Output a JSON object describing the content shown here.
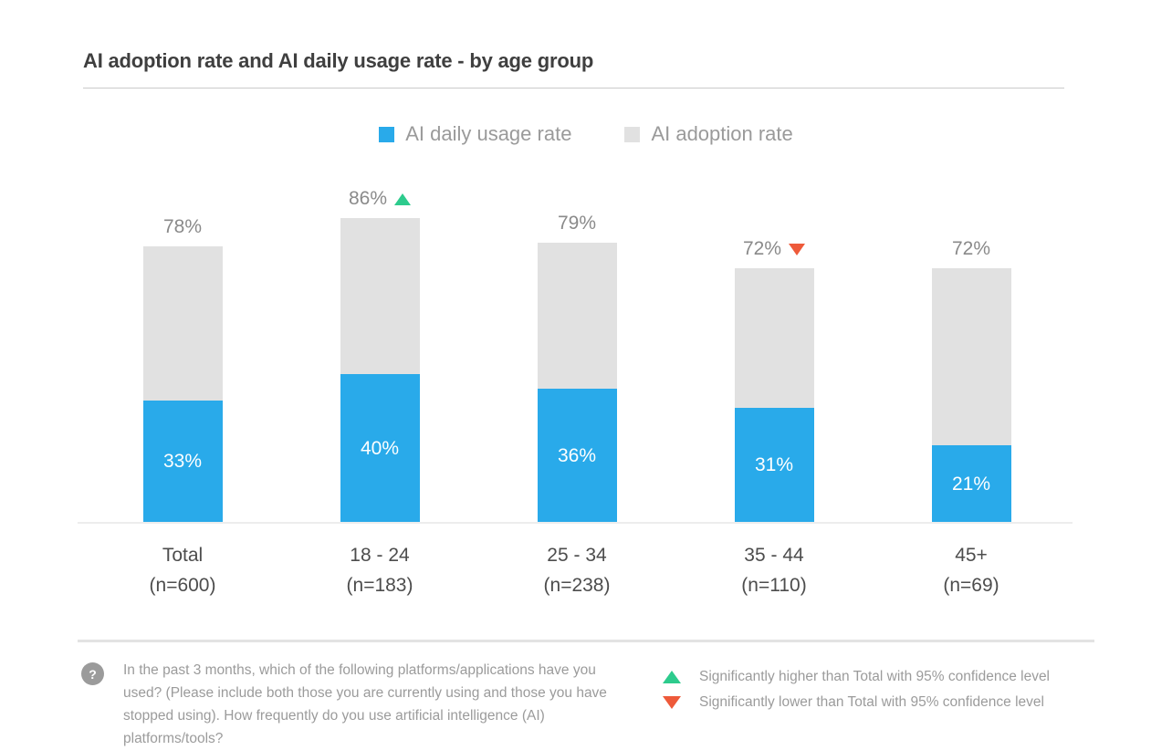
{
  "page": {
    "title": "AI adoption rate and AI daily usage rate  - by age group"
  },
  "legend": [
    {
      "label": "AI daily usage rate",
      "color": "#29aaea"
    },
    {
      "label": "AI adoption rate",
      "color": "#e1e1e1"
    }
  ],
  "chart_data": {
    "type": "bar",
    "subtype": "overlaid-bars",
    "title": "AI adoption rate and AI daily usage rate  - by age group",
    "categories": [
      "Total",
      "18 - 24",
      "25 - 34",
      "35 - 44",
      "45+"
    ],
    "sample_sizes": [
      "(n=600)",
      "(n=183)",
      "(n=238)",
      "(n=110)",
      "(n=69)"
    ],
    "series": [
      {
        "name": "AI adoption rate",
        "color": "#e1e1e1",
        "values": [
          78,
          86,
          79,
          72,
          72
        ]
      },
      {
        "name": "AI daily usage rate",
        "color": "#29aaea",
        "values": [
          33,
          40,
          36,
          31,
          21
        ]
      }
    ],
    "significance": [
      null,
      "higher",
      null,
      "lower",
      null
    ],
    "significance_colors": {
      "higher": "#2dcb8d",
      "lower": "#ee5a3a"
    },
    "value_suffix": "%",
    "ylim": [
      0,
      100
    ],
    "grid": false,
    "legend_position": "top-center"
  },
  "footer": {
    "question_icon": "question-mark-icon",
    "question_mark": "?",
    "question_text": "In the past 3 months, which of the following platforms/applications have you used? (Please include both those you are currently using and those you have stopped using). How frequently do you use artificial intelligence (AI) platforms/tools?",
    "significance_legend": [
      {
        "marker": "up-triangle",
        "color": "#2dcb8d",
        "label": "Significantly higher than Total with 95% confidence level"
      },
      {
        "marker": "down-triangle",
        "color": "#ee5a3a",
        "label": "Significantly lower than Total with 95% confidence level"
      }
    ]
  }
}
